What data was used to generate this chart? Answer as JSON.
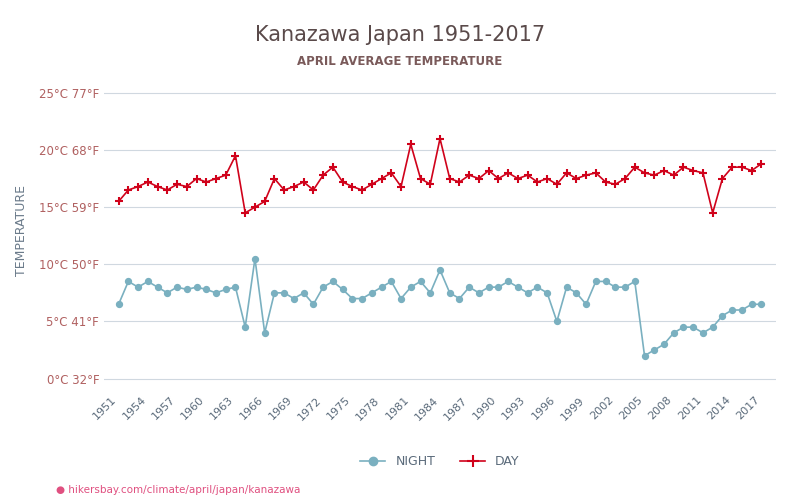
{
  "title": "Kanazawa Japan 1951-2017",
  "subtitle": "APRIL AVERAGE TEMPERATURE",
  "ylabel": "TEMPERATURE",
  "footer": "hikersbay.com/climate/april/japan/kanazawa",
  "years": [
    1951,
    1952,
    1953,
    1954,
    1955,
    1956,
    1957,
    1958,
    1959,
    1960,
    1961,
    1962,
    1963,
    1964,
    1965,
    1966,
    1967,
    1968,
    1969,
    1970,
    1971,
    1972,
    1973,
    1974,
    1975,
    1976,
    1977,
    1978,
    1979,
    1980,
    1981,
    1982,
    1983,
    1984,
    1985,
    1986,
    1987,
    1988,
    1989,
    1990,
    1991,
    1992,
    1993,
    1994,
    1995,
    1996,
    1997,
    1998,
    1999,
    2000,
    2001,
    2002,
    2003,
    2004,
    2005,
    2006,
    2007,
    2008,
    2009,
    2010,
    2011,
    2012,
    2013,
    2014,
    2015,
    2016,
    2017
  ],
  "day_temps": [
    15.5,
    16.5,
    16.8,
    17.2,
    16.8,
    16.5,
    17.0,
    16.8,
    17.5,
    17.2,
    17.5,
    17.8,
    19.5,
    14.5,
    15.0,
    15.5,
    17.5,
    16.5,
    16.8,
    17.2,
    16.5,
    17.8,
    18.5,
    17.2,
    16.8,
    16.5,
    17.0,
    17.5,
    18.0,
    16.8,
    20.5,
    17.5,
    17.0,
    21.0,
    17.5,
    17.2,
    17.8,
    17.5,
    18.2,
    17.5,
    18.0,
    17.5,
    17.8,
    17.2,
    17.5,
    17.0,
    18.0,
    17.5,
    17.8,
    18.0,
    17.2,
    17.0,
    17.5,
    18.5,
    18.0,
    17.8,
    18.2,
    17.8,
    18.5,
    18.2,
    18.0,
    14.5,
    17.5,
    18.5,
    18.5,
    18.2,
    18.8
  ],
  "night_temps": [
    6.5,
    8.5,
    8.0,
    8.5,
    8.0,
    7.5,
    8.0,
    7.8,
    8.0,
    7.8,
    7.5,
    7.8,
    8.0,
    4.5,
    10.5,
    4.0,
    7.5,
    7.5,
    7.0,
    7.5,
    6.5,
    8.0,
    8.5,
    7.8,
    7.0,
    7.0,
    7.5,
    8.0,
    8.5,
    7.0,
    8.0,
    8.5,
    7.5,
    9.5,
    7.5,
    7.0,
    8.0,
    7.5,
    8.0,
    8.0,
    8.5,
    8.0,
    7.5,
    8.0,
    7.5,
    5.0,
    8.0,
    7.5,
    6.5,
    8.5,
    8.5,
    8.0,
    8.0,
    8.5,
    2.0,
    2.5,
    3.0,
    4.0,
    4.5,
    4.5,
    4.0,
    4.5,
    5.5,
    6.0,
    6.0,
    6.5,
    6.5
  ],
  "day_color": "#d0021b",
  "night_color": "#7ab0c0",
  "day_marker": "+",
  "night_marker": "o",
  "title_color": "#5a4a4a",
  "subtitle_color": "#7a5a5a",
  "ylabel_color": "#6a7a8a",
  "tick_label_color": "#b06060",
  "grid_color": "#d0d8e0",
  "background_color": "#ffffff",
  "yticks_c": [
    0,
    5,
    10,
    15,
    20,
    25
  ],
  "ytick_labels": [
    "0°C 32°F",
    "5°C 41°F",
    "10°C 50°F",
    "15°C 59°F",
    "20°C 68°F",
    "25°C 77°F"
  ],
  "xtick_years": [
    1951,
    1954,
    1957,
    1960,
    1963,
    1966,
    1969,
    1972,
    1975,
    1978,
    1981,
    1984,
    1987,
    1990,
    1993,
    1996,
    1999,
    2002,
    2005,
    2008,
    2011,
    2014,
    2017
  ],
  "legend_night": "NIGHT",
  "legend_day": "DAY",
  "footer_color": "#e05080",
  "footer_icon_color": "#e8a020"
}
